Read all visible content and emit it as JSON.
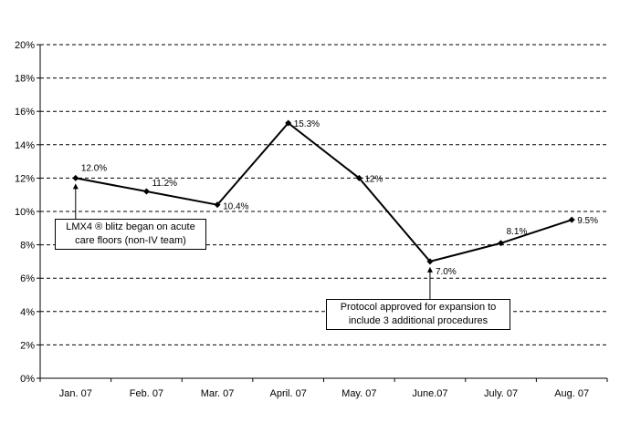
{
  "chart_data": {
    "type": "line",
    "categories": [
      "Jan. 07",
      "Feb. 07",
      "Mar. 07",
      "April. 07",
      "May. 07",
      "June.07",
      "July. 07",
      "Aug. 07"
    ],
    "series": [
      {
        "values": [
          12.0,
          11.2,
          10.4,
          15.3,
          12.0,
          7.0,
          8.1,
          9.5
        ],
        "labels": [
          "12.0%",
          "11.2%",
          "10.4%",
          "15.3%",
          "12%",
          "7.0%",
          "8.1%",
          "9.5%"
        ],
        "color": "#000000"
      }
    ],
    "ylim": [
      0,
      20
    ],
    "yticks": [
      "0%",
      "2%",
      "4%",
      "6%",
      "8%",
      "10%",
      "12%",
      "14%",
      "16%",
      "18%",
      "20%"
    ],
    "grid": true,
    "title": "",
    "xlabel": "",
    "ylabel": "",
    "annotations": [
      {
        "text_lines": [
          "LMX4 ® blitz began on acute",
          "care floors (non-IV team)"
        ],
        "category": "Jan. 07"
      },
      {
        "text_lines": [
          "Protocol approved for expansion to",
          "include 3 additional procedures"
        ],
        "category": "June.07"
      }
    ]
  }
}
